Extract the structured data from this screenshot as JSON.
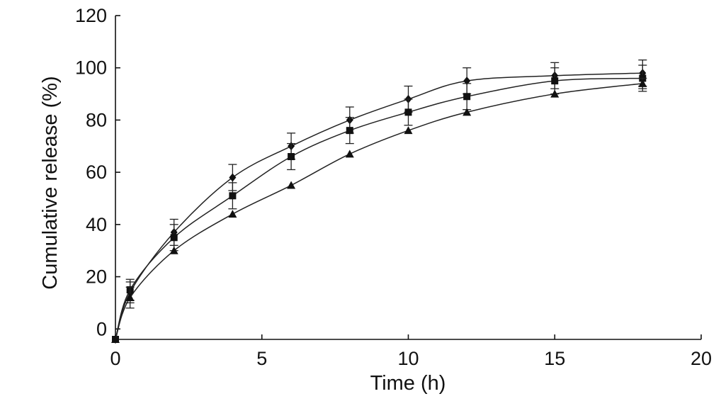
{
  "chart_data": {
    "type": "line",
    "title": "",
    "xlabel": "Time (h)",
    "ylabel": "Cumulative release (%)",
    "xlim": [
      0,
      20
    ],
    "ylim": [
      -4,
      120
    ],
    "x_ticks": [
      "0",
      "5",
      "10",
      "15",
      "20"
    ],
    "y_ticks": [
      "0",
      "20",
      "40",
      "60",
      "80",
      "100",
      "120"
    ],
    "grid": false,
    "legend": "none",
    "color": "#111111",
    "series": [
      {
        "marker": "diamond",
        "x": [
          0,
          0.5,
          2,
          4,
          6,
          8,
          10,
          12,
          15,
          18
        ],
        "y": [
          -4,
          14,
          37,
          58,
          70,
          80,
          88,
          95,
          97,
          98
        ],
        "error": [
          0,
          4,
          5,
          5,
          5,
          5,
          5,
          5,
          5,
          5
        ]
      },
      {
        "marker": "square",
        "x": [
          0,
          0.5,
          2,
          4,
          6,
          8,
          10,
          12,
          15,
          18
        ],
        "y": [
          -4,
          15,
          35,
          51,
          66,
          76,
          83,
          89,
          95,
          96
        ],
        "error": [
          0,
          4,
          5,
          5,
          5,
          5,
          5,
          5,
          5,
          5
        ]
      },
      {
        "marker": "triangle",
        "x": [
          0,
          0.5,
          2,
          4,
          6,
          8,
          10,
          12,
          15,
          18
        ],
        "y": [
          -4,
          12,
          30,
          44,
          55,
          67,
          76,
          83,
          90,
          94
        ],
        "error": [
          0,
          4,
          0,
          0,
          0,
          0,
          0,
          0,
          0,
          2
        ]
      }
    ]
  }
}
